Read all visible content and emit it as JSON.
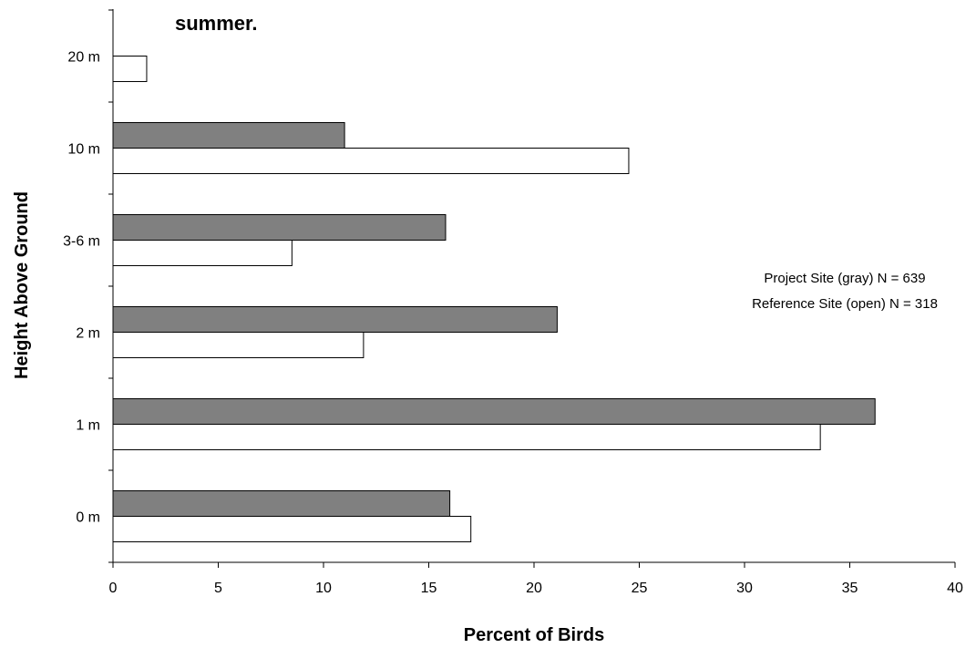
{
  "chart_data": {
    "type": "bar",
    "orientation": "horizontal",
    "title": "summer.",
    "xlabel": "Percent of Birds",
    "ylabel": "Height Above Ground",
    "categories": [
      "0 m",
      "1 m",
      "2 m",
      "3-6 m",
      "10 m",
      "20 m"
    ],
    "series": [
      {
        "key": "project",
        "color": "#808080",
        "values": [
          16,
          36.2,
          21.1,
          15.8,
          11,
          0
        ]
      },
      {
        "key": "reference",
        "color": "#ffffff",
        "values": [
          17,
          33.6,
          11.9,
          8.5,
          24.5,
          1.6
        ]
      }
    ],
    "xlim": [
      0,
      40
    ],
    "xticks": [
      0,
      5,
      10,
      15,
      20,
      25,
      30,
      35,
      40
    ],
    "grid": false,
    "legend": {
      "placement": "right",
      "lines": [
        "Project Site (gray) N = 639",
        "Reference Site (open)  N = 318"
      ]
    }
  }
}
